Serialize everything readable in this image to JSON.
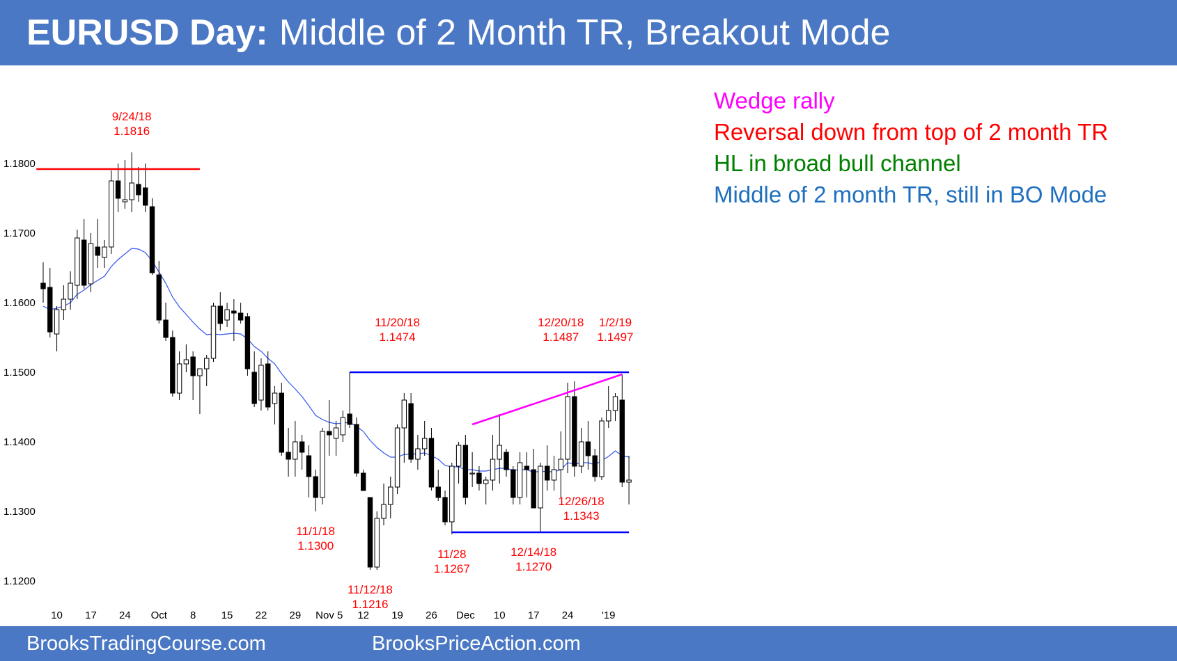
{
  "header": {
    "title_bold": "EURUSD Day:",
    "title_rest": "Middle of 2 Month TR, Breakout Mode",
    "background": "#4a78c4"
  },
  "notes": [
    {
      "text": "Wedge rally",
      "color": "#ff00ff"
    },
    {
      "text": "Reversal down from top of 2 month TR",
      "color": "#ff0000"
    },
    {
      "text": "HL in broad bull channel",
      "color": "#008000"
    },
    {
      "text": "Middle of 2 month TR, still in BO Mode",
      "color": "#1f6fbf"
    }
  ],
  "footer": {
    "left": "BrooksTradingCourse.com",
    "right": "BrooksPriceAction.com"
  },
  "chart_data": {
    "type": "candlestick",
    "instrument": "EURUSD",
    "timeframe": "Daily",
    "y_ticks": [
      1.18,
      1.17,
      1.16,
      1.15,
      1.14,
      1.13,
      1.12
    ],
    "y_tick_labels": [
      "1.1800",
      "1.1700",
      "1.1600",
      "1.1500",
      "1.1400",
      "1.1300",
      "1.1200"
    ],
    "ylim": [
      1.1135,
      1.194
    ],
    "x_tick_labels": [
      {
        "label": "10",
        "bar": 2
      },
      {
        "label": "17",
        "bar": 7
      },
      {
        "label": "24",
        "bar": 12
      },
      {
        "label": "Oct",
        "bar": 17
      },
      {
        "label": "8",
        "bar": 22
      },
      {
        "label": "15",
        "bar": 27
      },
      {
        "label": "22",
        "bar": 32
      },
      {
        "label": "29",
        "bar": 37
      },
      {
        "label": "Nov 5",
        "bar": 42
      },
      {
        "label": "12",
        "bar": 47
      },
      {
        "label": "19",
        "bar": 52
      },
      {
        "label": "26",
        "bar": 57
      },
      {
        "label": "Dec",
        "bar": 62
      },
      {
        "label": "10",
        "bar": 67
      },
      {
        "label": "17",
        "bar": 72
      },
      {
        "label": "24",
        "bar": 77
      },
      {
        "label": "'19",
        "bar": 83
      }
    ],
    "candles": [
      [
        1.1628,
        1.1658,
        1.16,
        1.162
      ],
      [
        1.1622,
        1.165,
        1.155,
        1.1558
      ],
      [
        1.1555,
        1.1595,
        1.153,
        1.159
      ],
      [
        1.159,
        1.1625,
        1.1575,
        1.1605
      ],
      [
        1.1605,
        1.1645,
        1.159,
        1.1628
      ],
      [
        1.1625,
        1.1705,
        1.1605,
        1.1693
      ],
      [
        1.169,
        1.172,
        1.162,
        1.1625
      ],
      [
        1.1627,
        1.17,
        1.1615,
        1.1685
      ],
      [
        1.168,
        1.172,
        1.165,
        1.1668
      ],
      [
        1.1665,
        1.169,
        1.165,
        1.168
      ],
      [
        1.168,
        1.179,
        1.167,
        1.1775
      ],
      [
        1.1775,
        1.18,
        1.173,
        1.175
      ],
      [
        1.1745,
        1.1805,
        1.1735,
        1.1748
      ],
      [
        1.1748,
        1.1816,
        1.173,
        1.1772
      ],
      [
        1.177,
        1.1795,
        1.1745,
        1.1755
      ],
      [
        1.1765,
        1.18,
        1.173,
        1.174
      ],
      [
        1.1738,
        1.175,
        1.164,
        1.1643
      ],
      [
        1.164,
        1.166,
        1.157,
        1.1575
      ],
      [
        1.1575,
        1.16,
        1.1545,
        1.155
      ],
      [
        1.155,
        1.156,
        1.1465,
        1.147
      ],
      [
        1.147,
        1.153,
        1.146,
        1.1512
      ],
      [
        1.1512,
        1.154,
        1.15,
        1.1518
      ],
      [
        1.1522,
        1.153,
        1.146,
        1.1495
      ],
      [
        1.1495,
        1.1505,
        1.144,
        1.1505
      ],
      [
        1.1505,
        1.1525,
        1.148,
        1.152
      ],
      [
        1.152,
        1.16,
        1.1515,
        1.1595
      ],
      [
        1.1595,
        1.1615,
        1.156,
        1.157
      ],
      [
        1.1575,
        1.16,
        1.1565,
        1.159
      ],
      [
        1.1588,
        1.1605,
        1.1545,
        1.1585
      ],
      [
        1.1585,
        1.16,
        1.157,
        1.1575
      ],
      [
        1.158,
        1.1585,
        1.1495,
        1.1505
      ],
      [
        1.15,
        1.153,
        1.145,
        1.1455
      ],
      [
        1.146,
        1.152,
        1.1445,
        1.151
      ],
      [
        1.1512,
        1.153,
        1.1445,
        1.145
      ],
      [
        1.1455,
        1.148,
        1.1425,
        1.147
      ],
      [
        1.147,
        1.1485,
        1.138,
        1.1385
      ],
      [
        1.1385,
        1.142,
        1.135,
        1.1375
      ],
      [
        1.1375,
        1.143,
        1.135,
        1.14
      ],
      [
        1.14,
        1.141,
        1.136,
        1.1385
      ],
      [
        1.138,
        1.1395,
        1.132,
        1.135
      ],
      [
        1.135,
        1.136,
        1.13,
        1.132
      ],
      [
        1.132,
        1.142,
        1.131,
        1.1415
      ],
      [
        1.1415,
        1.146,
        1.138,
        1.141
      ],
      [
        1.1405,
        1.143,
        1.138,
        1.142
      ],
      [
        1.141,
        1.1445,
        1.14,
        1.1435
      ],
      [
        1.144,
        1.1474,
        1.142,
        1.1425
      ],
      [
        1.1425,
        1.1435,
        1.135,
        1.1355
      ],
      [
        1.1355,
        1.136,
        1.133,
        1.133
      ],
      [
        1.132,
        1.132,
        1.1216,
        1.122
      ],
      [
        1.122,
        1.13,
        1.1216,
        1.129
      ],
      [
        1.129,
        1.134,
        1.128,
        1.131
      ],
      [
        1.131,
        1.135,
        1.129,
        1.1335
      ],
      [
        1.1335,
        1.1425,
        1.1325,
        1.142
      ],
      [
        1.142,
        1.147,
        1.137,
        1.146
      ],
      [
        1.1455,
        1.147,
        1.137,
        1.1375
      ],
      [
        1.1375,
        1.141,
        1.136,
        1.139
      ],
      [
        1.139,
        1.143,
        1.138,
        1.1405
      ],
      [
        1.1405,
        1.142,
        1.133,
        1.1335
      ],
      [
        1.1335,
        1.136,
        1.1315,
        1.132
      ],
      [
        1.132,
        1.133,
        1.128,
        1.1285
      ],
      [
        1.1285,
        1.137,
        1.1267,
        1.1365
      ],
      [
        1.1365,
        1.14,
        1.134,
        1.1395
      ],
      [
        1.1395,
        1.141,
        1.131,
        1.132
      ],
      [
        1.1355,
        1.1385,
        1.1335,
        1.1355
      ],
      [
        1.1355,
        1.1365,
        1.133,
        1.134
      ],
      [
        1.134,
        1.135,
        1.131,
        1.1345
      ],
      [
        1.1345,
        1.141,
        1.133,
        1.1375
      ],
      [
        1.1375,
        1.144,
        1.134,
        1.1395
      ],
      [
        1.1385,
        1.139,
        1.135,
        1.136
      ],
      [
        1.136,
        1.1365,
        1.131,
        1.132
      ],
      [
        1.132,
        1.1385,
        1.131,
        1.137
      ],
      [
        1.1365,
        1.1385,
        1.132,
        1.136
      ],
      [
        1.136,
        1.139,
        1.131,
        1.1305
      ],
      [
        1.1305,
        1.137,
        1.127,
        1.1365
      ],
      [
        1.1365,
        1.1395,
        1.133,
        1.1345
      ],
      [
        1.1345,
        1.138,
        1.133,
        1.136
      ],
      [
        1.136,
        1.1415,
        1.132,
        1.1375
      ],
      [
        1.1375,
        1.1485,
        1.1355,
        1.1465
      ],
      [
        1.1465,
        1.1487,
        1.135,
        1.1365
      ],
      [
        1.1365,
        1.142,
        1.1355,
        1.14
      ],
      [
        1.14,
        1.143,
        1.136,
        1.138
      ],
      [
        1.138,
        1.139,
        1.1343,
        1.135
      ],
      [
        1.135,
        1.1435,
        1.1345,
        1.143
      ],
      [
        1.143,
        1.148,
        1.142,
        1.1445
      ],
      [
        1.1445,
        1.147,
        1.143,
        1.1465
      ],
      [
        1.146,
        1.1497,
        1.1335,
        1.1342
      ],
      [
        1.1342,
        1.138,
        1.131,
        1.1345
      ]
    ],
    "moving_average": [
      1.1595,
      1.159,
      1.1592,
      1.1595,
      1.16,
      1.1612,
      1.1618,
      1.1626,
      1.1632,
      1.1638,
      1.1652,
      1.1662,
      1.167,
      1.1678,
      1.1677,
      1.1672,
      1.166,
      1.1644,
      1.1628,
      1.1608,
      1.1594,
      1.1583,
      1.1572,
      1.1562,
      1.1554,
      1.1555,
      1.1554,
      1.1555,
      1.1556,
      1.1555,
      1.1548,
      1.1537,
      1.153,
      1.152,
      1.1512,
      1.1498,
      1.1486,
      1.1476,
      1.1465,
      1.1452,
      1.1438,
      1.1432,
      1.1428,
      1.1426,
      1.1427,
      1.1428,
      1.1422,
      1.1415,
      1.1402,
      1.1392,
      1.1384,
      1.1378,
      1.1378,
      1.1382,
      1.1382,
      1.1383,
      1.1384,
      1.138,
      1.1375,
      1.1366,
      1.1364,
      1.1364,
      1.136,
      1.136,
      1.1358,
      1.1358,
      1.136,
      1.1362,
      1.1362,
      1.1359,
      1.136,
      1.136,
      1.1356,
      1.1358,
      1.1357,
      1.1357,
      1.136,
      1.137,
      1.1368,
      1.137,
      1.137,
      1.1367,
      1.1373,
      1.1379,
      1.1387,
      1.138,
      1.1378
    ],
    "lines": [
      {
        "name": "resistance",
        "color": "#ff0000",
        "y": 1.1792,
        "from_bar": -1,
        "to_bar": 23
      },
      {
        "name": "tr-top",
        "color": "#0000ff",
        "y": 1.15,
        "from_bar": 45,
        "to_bar": 86
      },
      {
        "name": "tr-bottom",
        "color": "#0000ff",
        "y": 1.127,
        "from_bar": 60,
        "to_bar": 86
      },
      {
        "name": "wedge",
        "color": "#ff00ff",
        "y1": 1.1425,
        "y2": 1.1497,
        "from_bar": 63,
        "to_bar": 85
      }
    ],
    "annotations": [
      {
        "lines": [
          "9/24/18",
          "1.1816"
        ],
        "bar": 13,
        "price": 1.1816,
        "pos": "above"
      },
      {
        "lines": [
          "11/20/18",
          "1.1474"
        ],
        "bar": 52,
        "price": 1.152,
        "pos": "above"
      },
      {
        "lines": [
          "12/20/18",
          "1.1487"
        ],
        "bar": 76,
        "price": 1.152,
        "pos": "above"
      },
      {
        "lines": [
          "1/2/19",
          "1.1497"
        ],
        "bar": 84,
        "price": 1.152,
        "pos": "above"
      },
      {
        "lines": [
          "11/1/18",
          "1.1300"
        ],
        "bar": 40,
        "price": 1.13,
        "pos": "below"
      },
      {
        "lines": [
          "11/12/18",
          "1.1216"
        ],
        "bar": 48,
        "price": 1.1216,
        "pos": "below"
      },
      {
        "lines": [
          "11/28",
          "1.1267"
        ],
        "bar": 60,
        "price": 1.1267,
        "pos": "below"
      },
      {
        "lines": [
          "12/14/18",
          "1.1270"
        ],
        "bar": 72,
        "price": 1.127,
        "pos": "below"
      },
      {
        "lines": [
          "12/26/18",
          "1.1343"
        ],
        "bar": 79,
        "price": 1.1343,
        "pos": "below"
      }
    ]
  }
}
